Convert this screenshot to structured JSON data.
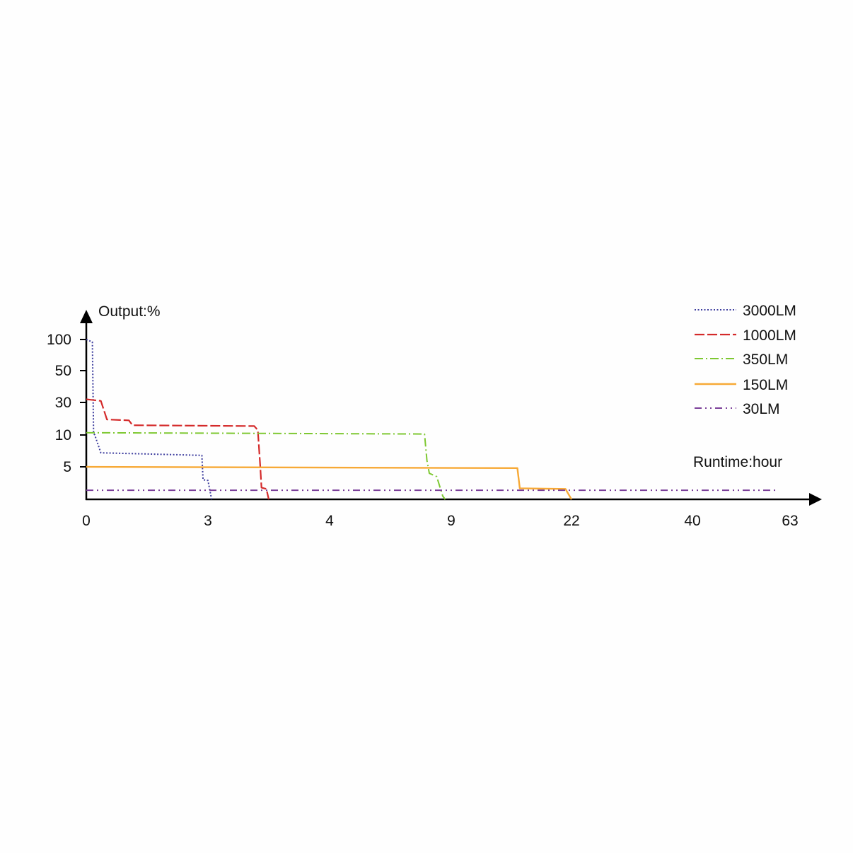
{
  "chart_data": {
    "type": "line",
    "ylabel": "Output:%",
    "xlabel": "Runtime:hour",
    "x_scale": "categorical-nonlinear",
    "y_scale": "categorical-nonlinear",
    "x_ticks": [
      "0",
      "3",
      "4",
      "9",
      "22",
      "40",
      "63"
    ],
    "y_ticks": [
      "5",
      "10",
      "30",
      "50",
      "100"
    ],
    "legend_position": "top-right",
    "series": [
      {
        "name": "3000LM",
        "color": "#3d3d9e",
        "dash": "dotted",
        "points": [
          [
            0,
            100
          ],
          [
            0.05,
            96
          ],
          [
            0.06,
            11
          ],
          [
            0.07,
            10
          ],
          [
            0.12,
            7.2
          ],
          [
            0.95,
            6.8
          ],
          [
            0.96,
            3
          ],
          [
            1.0,
            2.9
          ],
          [
            1.03,
            0
          ]
        ]
      },
      {
        "name": "1000LM",
        "color": "#d42a2a",
        "dash": "dashed",
        "points": [
          [
            0,
            32
          ],
          [
            0.12,
            31
          ],
          [
            0.17,
            19.5
          ],
          [
            0.35,
            19
          ],
          [
            0.38,
            16
          ],
          [
            1.38,
            15.5
          ],
          [
            1.41,
            13
          ],
          [
            1.43,
            5
          ],
          [
            1.44,
            1.8
          ],
          [
            1.48,
            1.6
          ],
          [
            1.5,
            0
          ]
        ]
      },
      {
        "name": "350LM",
        "color": "#7ec832",
        "dash": "dashdot",
        "points": [
          [
            0,
            11.4
          ],
          [
            2.78,
            10.6
          ],
          [
            2.8,
            6
          ],
          [
            2.82,
            4
          ],
          [
            2.88,
            3.5
          ],
          [
            2.93,
            0.5
          ],
          [
            2.95,
            0
          ]
        ]
      },
      {
        "name": "150LM",
        "color": "#f7a936",
        "dash": "solid",
        "points": [
          [
            0,
            5
          ],
          [
            3.55,
            4.8
          ],
          [
            3.57,
            1.7
          ],
          [
            3.95,
            1.6
          ],
          [
            4.0,
            0
          ]
        ]
      },
      {
        "name": "30LM",
        "color": "#7b3f99",
        "dash": "dashdotdot",
        "points": [
          [
            0,
            1.4
          ],
          [
            5.85,
            1.4
          ]
        ]
      }
    ]
  }
}
